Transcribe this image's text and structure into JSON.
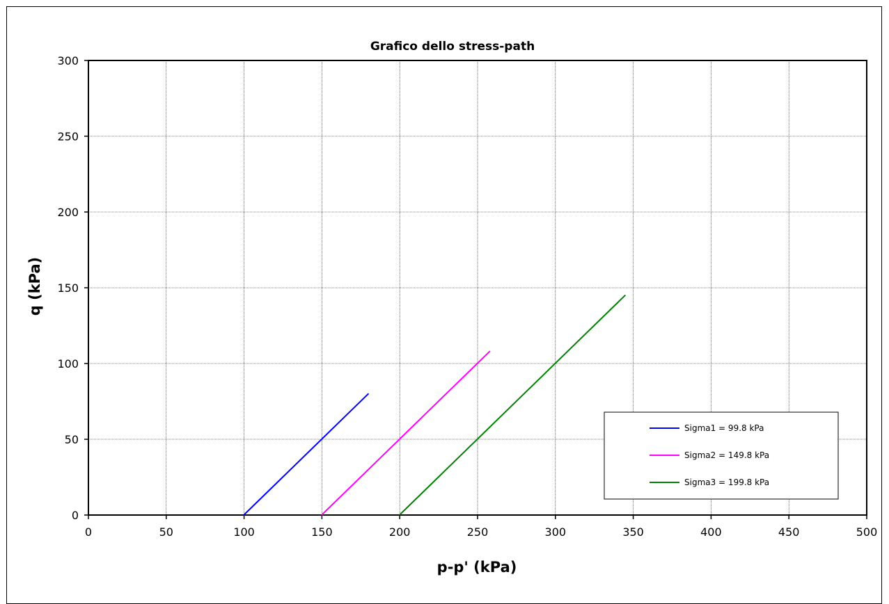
{
  "chart_data": {
    "type": "line",
    "title": "Grafico dello stress-path",
    "xlabel": "p-p' (kPa)",
    "ylabel": "q (kPa)",
    "xlim": [
      0,
      500
    ],
    "ylim": [
      0,
      300
    ],
    "xticks": [
      0,
      50,
      100,
      150,
      200,
      250,
      300,
      350,
      400,
      450,
      500
    ],
    "yticks": [
      0,
      50,
      100,
      150,
      200,
      250,
      300
    ],
    "grid": true,
    "legend_position": "bottom-right",
    "series": [
      {
        "name": "Sigma1 = 99.8 kPa",
        "color": "#0000ff",
        "x": [
          99.8,
          180
        ],
        "y": [
          0,
          80.2
        ]
      },
      {
        "name": "Sigma2 = 149.8 kPa",
        "color": "#ff00ff",
        "x": [
          149.8,
          258
        ],
        "y": [
          0,
          108.2
        ]
      },
      {
        "name": "Sigma3 = 199.8 kPa",
        "color": "#008000",
        "x": [
          199.8,
          345
        ],
        "y": [
          0,
          145.2
        ]
      }
    ]
  }
}
